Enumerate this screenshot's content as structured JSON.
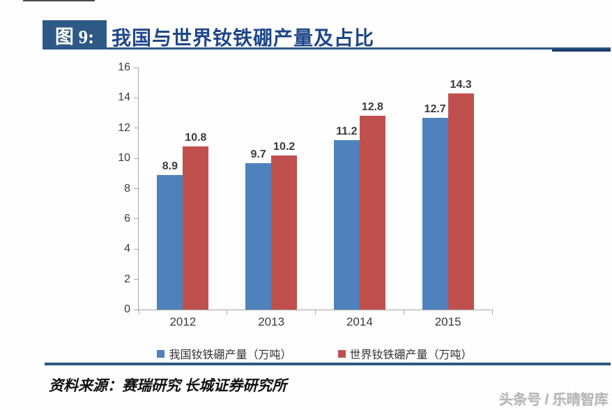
{
  "header": {
    "figure_label": "图 9:",
    "title": "我国与世界钕铁硼产量及占比"
  },
  "chart_data": {
    "type": "bar",
    "title": "我国与世界钕铁硼产量及占比",
    "categories": [
      "2012",
      "2013",
      "2014",
      "2015"
    ],
    "series": [
      {
        "name": "我国钕铁硼产量（万吨）",
        "color": "#4F81BD",
        "values": [
          8.9,
          9.7,
          11.2,
          12.7
        ]
      },
      {
        "name": "世界钕铁硼产量（万吨）",
        "color": "#C0504D",
        "values": [
          10.8,
          10.2,
          12.8,
          14.3
        ]
      }
    ],
    "ylim": [
      0,
      16
    ],
    "yticks": [
      0,
      2,
      4,
      6,
      8,
      10,
      12,
      14,
      16
    ],
    "grid": false,
    "legend_position": "bottom",
    "axis_color": "#A6A6A6",
    "label_color": "#3B3B3B"
  },
  "footer": {
    "source": "资料来源：赛瑞研究 长城证券研究所",
    "watermark": "头条号 / 乐晴智库"
  }
}
